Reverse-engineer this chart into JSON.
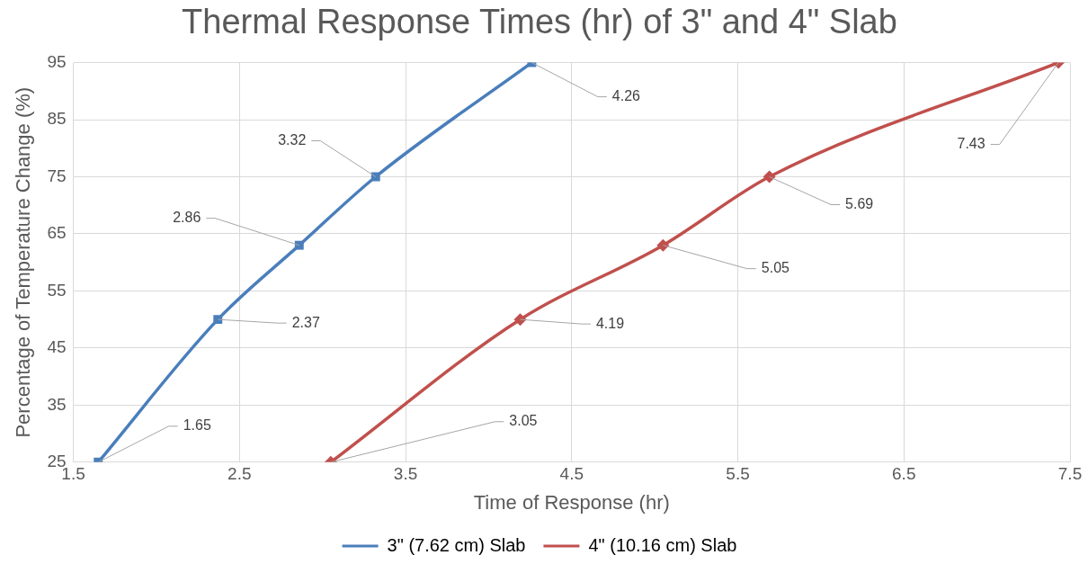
{
  "chart_data": {
    "type": "line",
    "title": "Thermal Response Times (hr) of 3\" and 4\" Slab",
    "xlabel": "Time of Response (hr)",
    "ylabel": "Percentage of Temperature Change (%)",
    "series": [
      {
        "name": "3\" (7.62 cm) Slab",
        "color": "#4a7ebb",
        "marker": "square",
        "x": [
          1.65,
          2.37,
          2.86,
          3.32,
          4.26
        ],
        "values": [
          25,
          50,
          63,
          75,
          95
        ]
      },
      {
        "name": "4\" (10.16 cm) Slab",
        "color": "#c0504d",
        "marker": "diamond",
        "x": [
          3.05,
          4.19,
          5.05,
          5.69,
          7.43
        ],
        "values": [
          25,
          50,
          63,
          75,
          95
        ]
      }
    ],
    "annotations": [
      {
        "text": "1.65",
        "x": 1.65,
        "y": 25
      },
      {
        "text": "2.37",
        "x": 2.37,
        "y": 50
      },
      {
        "text": "2.86",
        "x": 2.86,
        "y": 63
      },
      {
        "text": "3.32",
        "x": 3.32,
        "y": 75
      },
      {
        "text": "4.26",
        "x": 4.26,
        "y": 95
      },
      {
        "text": "3.05",
        "x": 3.05,
        "y": 25
      },
      {
        "text": "4.19",
        "x": 4.19,
        "y": 50
      },
      {
        "text": "5.05",
        "x": 5.05,
        "y": 63
      },
      {
        "text": "5.69",
        "x": 5.69,
        "y": 75
      },
      {
        "text": "7.43",
        "x": 7.43,
        "y": 95
      }
    ],
    "xlim": [
      1.5,
      7.5
    ],
    "xticks": [
      1.5,
      2.5,
      3.5,
      4.5,
      5.5,
      6.5,
      7.5
    ],
    "ylim": [
      25,
      95
    ],
    "yticks": [
      25,
      35,
      45,
      55,
      65,
      75,
      85,
      95
    ],
    "grid": true,
    "legend": "bottom"
  }
}
